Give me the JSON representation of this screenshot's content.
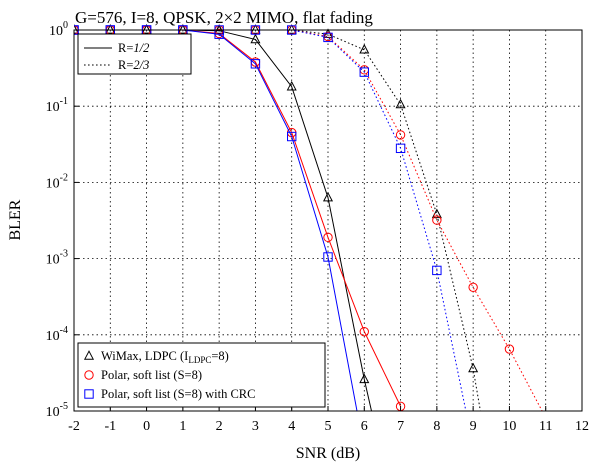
{
  "chart_data": {
    "type": "line",
    "title": "G=576, I=8, QPSK, 2×2 MIMO, flat fading",
    "xlabel": "SNR (dB)",
    "ylabel": "BLER",
    "xlim": [
      -2,
      12
    ],
    "ylim": [
      1e-05,
      1
    ],
    "yscale": "log",
    "grid": true,
    "xticks": [
      "-2",
      "-1",
      "0",
      "1",
      "2",
      "3",
      "4",
      "5",
      "6",
      "7",
      "8",
      "9",
      "10",
      "11",
      "12"
    ],
    "yticks": [
      {
        "base": "10",
        "exp": "0"
      },
      {
        "base": "10",
        "exp": "-1"
      },
      {
        "base": "10",
        "exp": "-2"
      },
      {
        "base": "10",
        "exp": "-3"
      },
      {
        "base": "10",
        "exp": "-4"
      },
      {
        "base": "10",
        "exp": "-5"
      }
    ],
    "legend_rate": {
      "placement": "top-left",
      "entries": [
        {
          "prefix": "R=",
          "frac": "1/2",
          "style": "solid"
        },
        {
          "prefix": "R=",
          "frac": "2/3",
          "style": "dotted"
        }
      ]
    },
    "legend_codes": {
      "placement": "bottom-left",
      "entries": [
        {
          "marker": "triangle",
          "color": "#000000",
          "text": "WiMax, LDPC (I",
          "sub": "LDPC",
          "tail": "=8)"
        },
        {
          "marker": "circle",
          "color": "#ff0000",
          "text": "Polar, soft list (S=8)",
          "sub": "",
          "tail": ""
        },
        {
          "marker": "square",
          "color": "#0000ff",
          "text": "Polar, soft list (S=8) with CRC",
          "sub": "",
          "tail": ""
        }
      ]
    },
    "series": [
      {
        "code": "wimax",
        "rate": "1/2",
        "color": "#000000",
        "marker": "triangle",
        "dash": "solid",
        "x": [
          -2,
          -1,
          0,
          1,
          2,
          3,
          4,
          5,
          6,
          6.2
        ],
        "y": [
          1,
          1,
          1,
          1,
          0.98,
          0.75,
          0.18,
          0.0063,
          2.6e-05,
          1e-05
        ]
      },
      {
        "code": "polar",
        "rate": "1/2",
        "color": "#ff0000",
        "marker": "circle",
        "dash": "solid",
        "x": [
          -2,
          -1,
          0,
          1,
          2,
          3,
          4,
          5,
          6,
          7
        ],
        "y": [
          1,
          1,
          1,
          1,
          0.9,
          0.38,
          0.045,
          0.0019,
          0.00011,
          1.15e-05
        ]
      },
      {
        "code": "polar_crc",
        "rate": "1/2",
        "color": "#0000ff",
        "marker": "square",
        "dash": "solid",
        "x": [
          -2,
          -1,
          0,
          1,
          2,
          3,
          4,
          5,
          5.8
        ],
        "y": [
          1,
          1,
          1,
          1,
          0.88,
          0.36,
          0.04,
          0.00105,
          1e-05
        ]
      },
      {
        "code": "wimax",
        "rate": "2/3",
        "color": "#000000",
        "marker": "triangle",
        "dash": "dotted",
        "x": [
          -2,
          -1,
          0,
          1,
          2,
          3,
          4,
          5,
          6,
          7,
          8,
          9,
          9.2
        ],
        "y": [
          1,
          1,
          1,
          1,
          1,
          1,
          1,
          0.88,
          0.55,
          0.105,
          0.0038,
          3.6e-05,
          1e-05
        ]
      },
      {
        "code": "polar",
        "rate": "2/3",
        "color": "#ff0000",
        "marker": "circle",
        "dash": "dotted",
        "x": [
          -2,
          -1,
          0,
          1,
          2,
          3,
          4,
          5,
          6,
          7,
          8,
          9,
          10,
          10.9
        ],
        "y": [
          1,
          1,
          1,
          1,
          1,
          1,
          1,
          0.82,
          0.3,
          0.042,
          0.0032,
          0.00042,
          6.5e-05,
          1e-05
        ]
      },
      {
        "code": "polar_crc",
        "rate": "2/3",
        "color": "#0000ff",
        "marker": "square",
        "dash": "dotted",
        "x": [
          -2,
          -1,
          0,
          1,
          2,
          3,
          4,
          5,
          6,
          7,
          8,
          8.8
        ],
        "y": [
          1,
          1,
          1,
          1,
          1,
          1,
          1,
          0.8,
          0.28,
          0.028,
          0.0007,
          1e-05
        ]
      }
    ]
  }
}
